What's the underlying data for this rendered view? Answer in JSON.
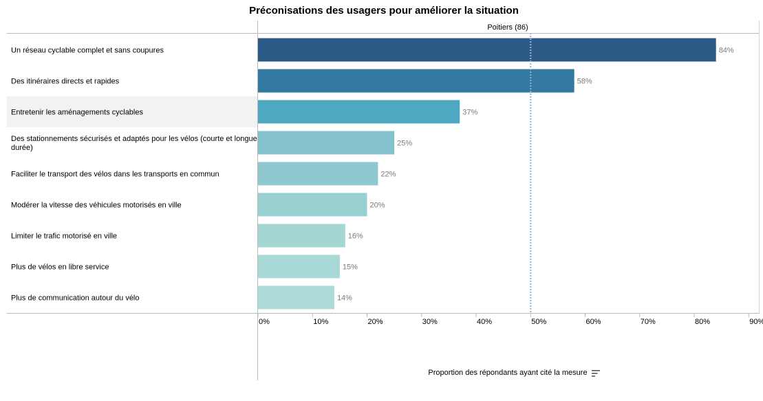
{
  "chart_data": {
    "type": "bar",
    "orientation": "horizontal",
    "title": "Préconisations des usagers pour améliorer la situation",
    "pane_header": "Poitiers (86)",
    "xlabel": "Proportion des répondants ayant cité la mesure",
    "categories": [
      "Un réseau cyclable complet et sans coupures",
      "Des itinéraires directs et rapides",
      "Entretenir les aménagements cyclables",
      "Des stationnements sécurisés et adaptés pour les vélos (courte et longue durée)",
      "Faciliter le transport des vélos dans les transports en commun",
      "Modérer la vitesse des véhicules motorisés en ville",
      "Limiter le trafic motorisé en ville",
      "Plus de vélos en libre service",
      "Plus de communication autour du vélo"
    ],
    "values": [
      84,
      58,
      37,
      25,
      22,
      20,
      16,
      15,
      14
    ],
    "value_labels": [
      "84%",
      "58%",
      "37%",
      "25%",
      "22%",
      "20%",
      "16%",
      "15%",
      "14%"
    ],
    "bar_colors": [
      "#2d5a87",
      "#33789e",
      "#4ea8c1",
      "#84c3cd",
      "#8fc9cf",
      "#99d0d0",
      "#a4d6d4",
      "#a9d9d6",
      "#acdbd8"
    ],
    "xlim": [
      0,
      92
    ],
    "xticks": [
      0,
      10,
      20,
      30,
      40,
      50,
      60,
      70,
      80,
      90
    ],
    "xtick_labels": [
      "0%",
      "10%",
      "20%",
      "30%",
      "40%",
      "50%",
      "60%",
      "70%",
      "80%",
      "90%"
    ],
    "reference_line": {
      "value": 50,
      "style": "dotted",
      "color": "#8fb4e3"
    },
    "highlighted_row": 2,
    "grid": false
  },
  "sort_icon": "sort-descending-icon"
}
